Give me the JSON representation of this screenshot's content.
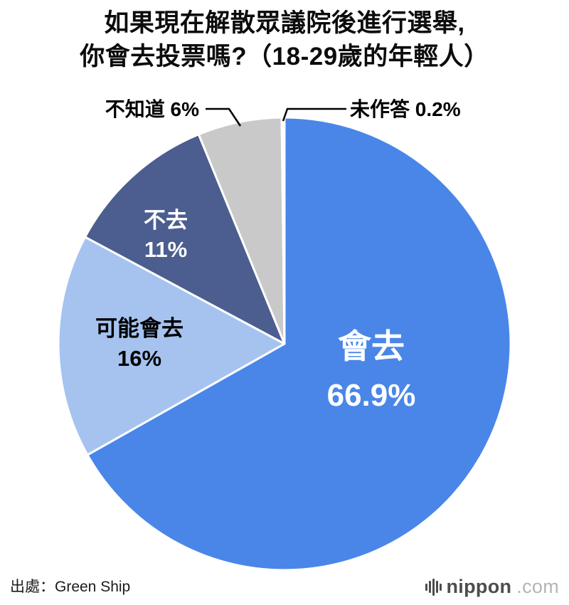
{
  "title": {
    "line1": "如果現在解散眾議院後進行選舉,",
    "line2": "你會去投票嗎?（18-29歲的年輕人）"
  },
  "chart_data": {
    "type": "pie",
    "title": "如果現在解散眾議院後進行選舉, 你會去投票嗎?（18-29歲的年輕人）",
    "start_angle": "top, clockwise",
    "legend_position": "labels on slices and callouts",
    "slices": [
      {
        "label": "會去",
        "value": 66.9,
        "percent_label": "66.9%",
        "color": "#4a86e8",
        "text_color": "#ffffff",
        "label_placement": "inside"
      },
      {
        "label": "可能會去",
        "value": 16,
        "percent_label": "16%",
        "color": "#a6c3f0",
        "text_color": "#000000",
        "label_placement": "inside"
      },
      {
        "label": "不去",
        "value": 11,
        "percent_label": "11%",
        "color": "#4c5e8f",
        "text_color": "#ffffff",
        "label_placement": "inside"
      },
      {
        "label": "不知道",
        "value": 6,
        "percent_label": "6%",
        "color": "#c9c9c9",
        "text_color": "#000000",
        "label_placement": "outside-left"
      },
      {
        "label": "未作答",
        "value": 0.2,
        "percent_label": "0.2%",
        "color": "#ffffff",
        "text_color": "#000000",
        "label_placement": "outside-right"
      }
    ]
  },
  "footer": {
    "source": "出處：Green Ship",
    "logo": {
      "name": "nippon",
      "suffix": ".com"
    }
  }
}
